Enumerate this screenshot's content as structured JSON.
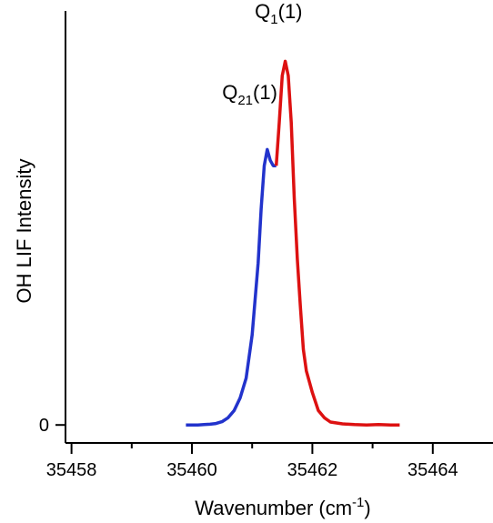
{
  "chart_data": {
    "type": "line",
    "title": "",
    "xlabel": {
      "text": "Wavenumber (cm",
      "superscript": "-1",
      "suffix": ")"
    },
    "ylabel": "OH LIF Intensity",
    "xlim": [
      35457.9,
      35465.0
    ],
    "ylim": [
      -0.05,
      1.15
    ],
    "x_ticks": [
      35458,
      35460,
      35462,
      35464
    ],
    "x_minor_ticks": [
      35459,
      35461,
      35463
    ],
    "y_ticks": [
      0
    ],
    "grid": false,
    "legend": "none",
    "annotations": [
      {
        "name": "q21",
        "base": "Q",
        "sub": "21",
        "suffix": "(1)",
        "x": 35460.96,
        "y": 0.905
      },
      {
        "name": "q1",
        "base": "Q",
        "sub": "1",
        "suffix": "(1)",
        "x": 35461.44,
        "y": 1.13
      }
    ],
    "series": [
      {
        "color": "#2233cc",
        "points": [
          [
            35459.9,
            0.0
          ],
          [
            35460.0,
            0.0
          ],
          [
            35460.1,
            0.0
          ],
          [
            35460.2,
            0.001
          ],
          [
            35460.3,
            0.002
          ],
          [
            35460.4,
            0.004
          ],
          [
            35460.5,
            0.009
          ],
          [
            35460.6,
            0.02
          ],
          [
            35460.7,
            0.04
          ],
          [
            35460.8,
            0.075
          ],
          [
            35460.9,
            0.13
          ],
          [
            35461.0,
            0.25
          ],
          [
            35461.1,
            0.45
          ],
          [
            35461.15,
            0.6
          ],
          [
            35461.2,
            0.72
          ],
          [
            35461.25,
            0.765
          ],
          [
            35461.3,
            0.735
          ],
          [
            35461.35,
            0.72
          ],
          [
            35461.4,
            0.72
          ]
        ]
      },
      {
        "color": "#dd1111",
        "points": [
          [
            35461.4,
            0.72
          ],
          [
            35461.45,
            0.84
          ],
          [
            35461.5,
            0.97
          ],
          [
            35461.55,
            1.01
          ],
          [
            35461.6,
            0.97
          ],
          [
            35461.65,
            0.84
          ],
          [
            35461.7,
            0.63
          ],
          [
            35461.75,
            0.46
          ],
          [
            35461.8,
            0.33
          ],
          [
            35461.85,
            0.21
          ],
          [
            35461.9,
            0.15
          ],
          [
            35461.95,
            0.12
          ],
          [
            35462.0,
            0.09
          ],
          [
            35462.1,
            0.04
          ],
          [
            35462.2,
            0.02
          ],
          [
            35462.3,
            0.008
          ],
          [
            35462.5,
            0.003
          ],
          [
            35462.7,
            0.001
          ],
          [
            35462.9,
            0.0
          ],
          [
            35463.1,
            0.001
          ],
          [
            35463.3,
            0.0
          ],
          [
            35463.45,
            0.0
          ]
        ]
      }
    ]
  }
}
